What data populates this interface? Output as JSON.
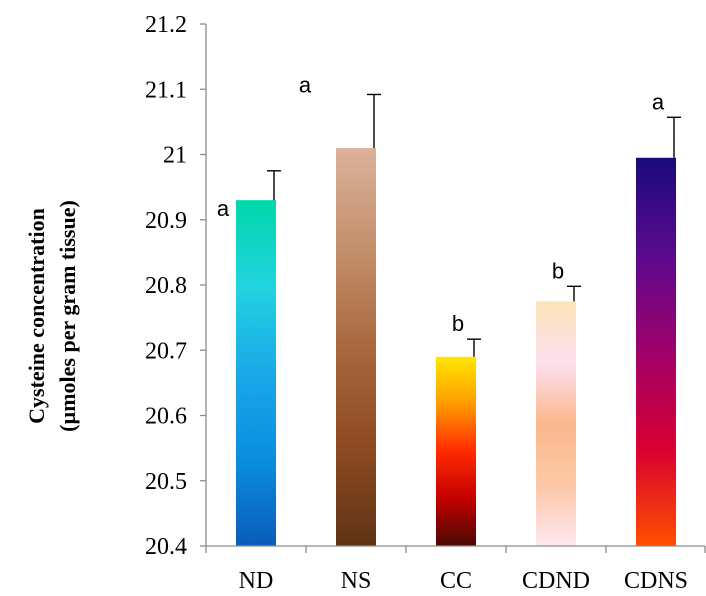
{
  "chart_data": {
    "type": "bar",
    "title": "",
    "xlabel": "",
    "ylabel": [
      "Cysteine concentration",
      "(µmoles per gram tissue)"
    ],
    "ylim": [
      20.4,
      21.2
    ],
    "yticks": [
      20.4,
      20.5,
      20.6,
      20.7,
      20.8,
      20.9,
      21,
      21.1,
      21.2
    ],
    "ytick_labels": [
      "20.4",
      "20.5",
      "20.6",
      "20.7",
      "20.8",
      "20.9",
      "21",
      "21.1",
      "21.2"
    ],
    "grid": false,
    "legend": "none",
    "categories": [
      "ND",
      "NS",
      "CC",
      "CDND",
      "CDNS"
    ],
    "values": [
      20.93,
      21.01,
      20.69,
      20.775,
      20.995
    ],
    "errors": [
      0.045,
      0.082,
      0.027,
      0.023,
      0.062
    ],
    "significance": [
      "a",
      "a",
      "b",
      "b",
      "a"
    ],
    "bar_gradients": [
      [
        "#00d6a8",
        "#22d4e0",
        "#1aa8e8",
        "#0a8ee0",
        "#0a5cb8"
      ],
      [
        "#dbb29b",
        "#c4906c",
        "#a9683f",
        "#8e4a22",
        "#5e3416"
      ],
      [
        "#ffe600",
        "#ff9a00",
        "#ff2a00",
        "#c20000",
        "#4a0a05"
      ],
      [
        "#fde3b8",
        "#fce0ef",
        "#fbb78c",
        "#fbc8a6",
        "#fde7ef"
      ],
      [
        "#1a0a7a",
        "#5a0a8e",
        "#a0006a",
        "#d80030",
        "#ff5000"
      ]
    ]
  }
}
